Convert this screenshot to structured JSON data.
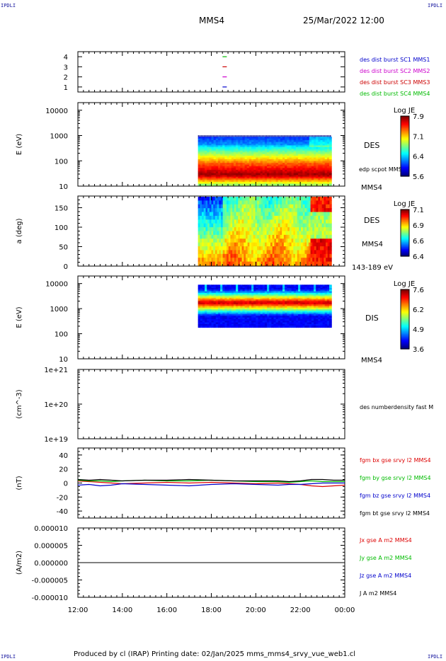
{
  "corners": {
    "tl": "IPDLI",
    "tr": "IPDLI",
    "bl": "IPDLI",
    "br": "IPDLI"
  },
  "header": {
    "spacecraft": "MMS4",
    "datetime": "25/Mar/2022 12:00"
  },
  "footer": {
    "text": "Produced by cl (IRAP)   Printing date: 02/Jan/2025   mms_mms4_srvy_vue_web1.cl"
  },
  "colors": {
    "mms1": "#0000cc",
    "mms2": "#cc00cc",
    "mms3": "#cc0000",
    "mms4": "#00bb00",
    "bx": "#dd0000",
    "by": "#00bb00",
    "bz": "#0000cc",
    "bt": "#000000"
  },
  "chart_data": [
    {
      "type": "scatter",
      "ylim": [
        0.5,
        4.5
      ],
      "yticks": [
        "1",
        "2",
        "3",
        "4"
      ],
      "legend": [
        {
          "text": "des dist burst SC1 MMS1",
          "color": "#0000cc"
        },
        {
          "text": "des dist burst SC2 MMS2",
          "color": "#cc00cc"
        },
        {
          "text": "des dist burst SC3 MMS3",
          "color": "#cc0000"
        },
        {
          "text": "des dist burst SC4 MMS4",
          "color": "#00bb00"
        }
      ],
      "markers": [
        {
          "sc": 1,
          "time": 18.6,
          "color": "#0000cc"
        },
        {
          "sc": 2,
          "time": 18.6,
          "color": "#cc00cc"
        },
        {
          "sc": 3,
          "time": 18.6,
          "color": "#cc0000"
        },
        {
          "sc": 4,
          "time": 18.6,
          "color": "#00bb00"
        }
      ]
    },
    {
      "type": "heatmap",
      "ylabel": "E (eV)",
      "yscale": "log",
      "ylim": [
        10,
        20000
      ],
      "yticks": [
        "10",
        "100",
        "1000",
        "10000"
      ],
      "label": "DES",
      "label2": "edp scpot MMS4",
      "label3": "MMS4",
      "data_span": [
        17.4,
        23.4
      ],
      "energy_range": [
        10,
        900
      ],
      "colorbar": {
        "title": "Log JE",
        "ticks": [
          "7.9",
          "7.1",
          "6.4",
          "5.6"
        ]
      }
    },
    {
      "type": "heatmap",
      "ylabel": "a (deg)",
      "ylim": [
        0,
        180
      ],
      "yticks": [
        "0",
        "50",
        "100",
        "150"
      ],
      "label": "DES",
      "label2": "MMS4",
      "label3": "143-189 eV",
      "data_span": [
        17.4,
        23.4
      ],
      "colorbar": {
        "title": "Log JE",
        "ticks": [
          "7.1",
          "6.9",
          "6.6",
          "6.4"
        ]
      }
    },
    {
      "type": "heatmap",
      "ylabel": "E (eV)",
      "yscale": "log",
      "ylim": [
        10,
        20000
      ],
      "yticks": [
        "10",
        "100",
        "1000",
        "10000"
      ],
      "label": "DIS",
      "label2": "MMS4",
      "data_span": [
        17.4,
        23.4
      ],
      "energy_range": [
        180,
        9000
      ],
      "colorbar": {
        "title": "Log JE",
        "ticks": [
          "7.6",
          "6.2",
          "4.9",
          "3.6"
        ]
      }
    },
    {
      "type": "line",
      "ylabel": "(cm^-3)",
      "yscale": "log",
      "yticks": [
        "1e+19",
        "1e+20",
        "1e+21"
      ],
      "legend": [
        {
          "text": "des numberdensity fast M",
          "color": "#000000"
        }
      ]
    },
    {
      "type": "line",
      "ylabel": "(nT)",
      "ylim": [
        -50,
        50
      ],
      "yticks": [
        "-40",
        "-20",
        "0",
        "20",
        "40"
      ],
      "legend": [
        {
          "text": "fgm bx gse srvy l2 MMS4",
          "color": "#dd0000"
        },
        {
          "text": "fgm by gse srvy l2 MMS4",
          "color": "#00bb00"
        },
        {
          "text": "fgm bz gse srvy l2 MMS4",
          "color": "#0000cc"
        },
        {
          "text": "fgm bt gse srvy l2 MMS4",
          "color": "#000000"
        }
      ],
      "series": [
        {
          "name": "fgm bx gse srvy l2 MMS4",
          "color": "#dd0000",
          "x": [
            12,
            12.5,
            13,
            13.5,
            14,
            15,
            16,
            17,
            18,
            19,
            20,
            21,
            21.5,
            22,
            22.5,
            23,
            23.5,
            24
          ],
          "values": [
            3,
            2,
            1,
            0,
            -1,
            0,
            1,
            0,
            1,
            0,
            -1,
            0,
            -1,
            -2,
            -4,
            -5,
            -4,
            -3
          ]
        },
        {
          "name": "fgm by gse srvy l2 MMS4",
          "color": "#00bb00",
          "x": [
            12,
            12.5,
            13,
            13.5,
            14,
            15,
            16,
            17,
            18,
            19,
            20,
            21,
            21.5,
            22,
            22.5,
            23,
            23.5,
            24
          ],
          "values": [
            4,
            3,
            3,
            2,
            3,
            4,
            3,
            3,
            4,
            3,
            2,
            2,
            1,
            2,
            3,
            2,
            2,
            2
          ]
        },
        {
          "name": "fgm bz gse srvy l2 MMS4",
          "color": "#0000cc",
          "x": [
            12,
            12.5,
            13,
            13.5,
            14,
            15,
            16,
            17,
            18,
            19,
            20,
            21,
            21.5,
            22,
            22.5,
            23,
            23.5,
            24
          ],
          "values": [
            -3,
            -2,
            -4,
            -3,
            -1,
            -2,
            -3,
            -4,
            -2,
            -1,
            -2,
            -3,
            -2,
            -2,
            -1,
            0,
            0,
            0
          ]
        },
        {
          "name": "fgm bt gse srvy l2 MMS4",
          "color": "#000000",
          "x": [
            12,
            12.5,
            13,
            13.5,
            14,
            15,
            16,
            17,
            18,
            19,
            20,
            21,
            21.5,
            22,
            22.5,
            23,
            23.5,
            24
          ],
          "values": [
            5,
            4,
            5,
            4,
            3,
            4,
            4,
            5,
            4,
            3,
            3,
            3,
            2,
            3,
            5,
            5,
            4,
            4
          ]
        }
      ]
    },
    {
      "type": "line",
      "ylabel": "(A/m2)",
      "ylim": [
        -1e-05,
        1e-05
      ],
      "yticks": [
        "-0.000010",
        "-0.000005",
        "0.000000",
        "0.000005",
        "0.000010"
      ],
      "legend": [
        {
          "text": "Jx gse A m2 MMS4",
          "color": "#dd0000"
        },
        {
          "text": "Jy gse A m2 MMS4",
          "color": "#00bb00"
        },
        {
          "text": "Jz gse A m2 MMS4",
          "color": "#0000cc"
        },
        {
          "text": "J A m2 MMS4",
          "color": "#000000"
        }
      ],
      "series": [
        {
          "name": "J A m2 MMS4",
          "color": "#000000",
          "x": [
            12,
            24
          ],
          "values": [
            0,
            0
          ]
        }
      ]
    }
  ],
  "xaxis": {
    "range": [
      12,
      24
    ],
    "ticks": [
      "12:00",
      "14:00",
      "16:00",
      "18:00",
      "20:00",
      "22:00",
      "00:00"
    ]
  }
}
